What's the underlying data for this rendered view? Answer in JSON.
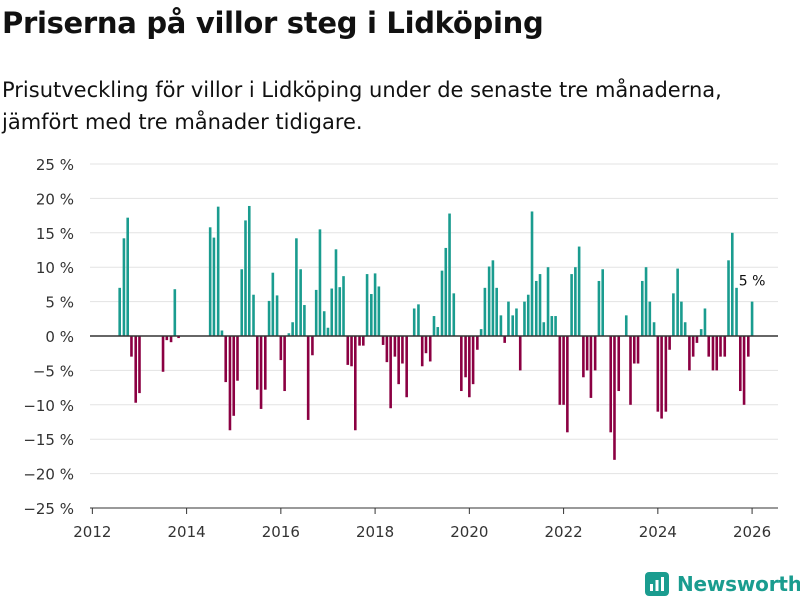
{
  "title": "Priserna på villor steg i Lidköping",
  "subtitle_lines": [
    "Prisutveckling för villor i Lidköping under de senaste tre månaderna,",
    "jämfört med tre månader tidigare."
  ],
  "brand": "Newsworthy",
  "colors": {
    "positive": "#1a9c8f",
    "negative": "#8b0042",
    "brand": "#1a9c8f"
  },
  "chart_data": {
    "type": "bar",
    "title": "Priserna på villor steg i Lidköping",
    "xlabel": "",
    "ylabel": "",
    "x_ticks": [
      2012,
      2014,
      2016,
      2018,
      2020,
      2022,
      2024,
      2026
    ],
    "y_ticks": [
      25,
      20,
      15,
      10,
      5,
      0,
      -5,
      -10,
      -15,
      -20,
      -25
    ],
    "y_tick_labels": [
      "25 %",
      "20 %",
      "15 %",
      "10 %",
      "5 %",
      "0 %",
      "−5 %",
      "−10 %",
      "−15 %",
      "−20 %",
      "−25 %"
    ],
    "ylim": [
      -25,
      25
    ],
    "xlim": [
      2011.95,
      2026.55
    ],
    "last_value_label": "5 %",
    "x": [
      2012.58,
      2012.67,
      2012.75,
      2012.83,
      2012.92,
      2013.0,
      2013.5,
      2013.58,
      2013.67,
      2013.75,
      2013.83,
      2014.5,
      2014.58,
      2014.67,
      2014.75,
      2014.83,
      2014.92,
      2015.0,
      2015.08,
      2015.17,
      2015.25,
      2015.33,
      2015.42,
      2015.5,
      2015.58,
      2015.67,
      2015.75,
      2015.83,
      2015.92,
      2016.0,
      2016.08,
      2016.17,
      2016.25,
      2016.33,
      2016.42,
      2016.5,
      2016.58,
      2016.67,
      2016.75,
      2016.83,
      2016.92,
      2017.0,
      2017.08,
      2017.17,
      2017.25,
      2017.33,
      2017.42,
      2017.5,
      2017.58,
      2017.67,
      2017.75,
      2017.83,
      2017.92,
      2018.0,
      2018.08,
      2018.17,
      2018.25,
      2018.33,
      2018.42,
      2018.5,
      2018.58,
      2018.67,
      2018.75,
      2018.83,
      2018.92,
      2019.0,
      2019.08,
      2019.17,
      2019.25,
      2019.33,
      2019.42,
      2019.5,
      2019.58,
      2019.67,
      2019.75,
      2019.83,
      2019.92,
      2020.0,
      2020.08,
      2020.17,
      2020.25,
      2020.33,
      2020.42,
      2020.5,
      2020.58,
      2020.67,
      2020.75,
      2020.83,
      2020.92,
      2021.0,
      2021.08,
      2021.17,
      2021.25,
      2021.33,
      2021.42,
      2021.5,
      2021.58,
      2021.67,
      2021.75,
      2021.83,
      2021.92,
      2022.0,
      2022.08,
      2022.17,
      2022.25,
      2022.33,
      2022.42,
      2022.5,
      2022.58,
      2022.67,
      2022.75,
      2022.83,
      2022.92,
      2023.0,
      2023.08,
      2023.17,
      2023.25,
      2023.33,
      2023.42,
      2023.5,
      2023.58,
      2023.67,
      2023.75,
      2023.83,
      2023.92,
      2024.0,
      2024.08,
      2024.17,
      2024.25,
      2024.33,
      2024.42,
      2024.5,
      2024.58,
      2024.67,
      2024.75,
      2024.83,
      2024.92,
      2025.0,
      2025.08,
      2025.17,
      2025.25,
      2025.33,
      2025.42,
      2025.5,
      2025.58,
      2025.67,
      2025.75,
      2025.83,
      2025.92,
      2026.0
    ],
    "values": [
      7,
      14.2,
      17.2,
      -3,
      -9.7,
      -8.3,
      -5.2,
      -0.6,
      -0.9,
      6.8,
      -0.3,
      15.8,
      14.3,
      18.8,
      0.8,
      -6.7,
      -13.7,
      -11.6,
      -6.5,
      9.7,
      16.8,
      18.9,
      6,
      -7.8,
      -10.6,
      -7.8,
      5.1,
      9.2,
      5.9,
      -3.5,
      -8,
      0.4,
      2,
      14.2,
      9.7,
      4.5,
      -12.2,
      -2.8,
      6.7,
      15.5,
      3.6,
      1.2,
      6.9,
      12.6,
      7.1,
      8.7,
      -4.2,
      -4.4,
      -13.7,
      -1.4,
      -1.4,
      9,
      6.1,
      9.1,
      7.2,
      -1.3,
      -3.8,
      -10.5,
      -3,
      -7,
      -4,
      -8.9,
      0,
      4,
      4.6,
      -4.4,
      -2.5,
      -3.7,
      2.9,
      1.3,
      9.5,
      12.8,
      17.8,
      6.2,
      0,
      -8,
      -6,
      -8.9,
      -7,
      -2,
      1,
      7,
      10.1,
      11,
      7,
      3,
      -1,
      5,
      3,
      4,
      -5,
      5,
      6,
      18.1,
      8,
      9,
      2,
      10,
      2.9,
      2.9,
      -10,
      -10,
      -14,
      9,
      10,
      13,
      -6,
      -5,
      -9,
      -5,
      8,
      9.7,
      0,
      -14,
      -18,
      -8,
      0,
      3,
      -10,
      -4,
      -4,
      8,
      10,
      5,
      2,
      -11,
      -12,
      -11,
      -2,
      6.2,
      9.8,
      5,
      2,
      -5,
      -3,
      -1,
      1,
      4,
      -3,
      -5,
      -5,
      -3,
      -3,
      11,
      15,
      7,
      -8,
      -10,
      -3,
      5
    ]
  }
}
